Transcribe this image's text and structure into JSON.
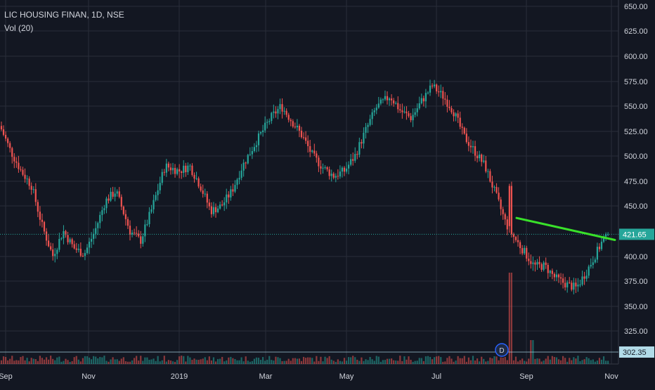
{
  "header": {
    "symbol_line": "LIC HOUSING FINAN, 1D, NSE",
    "volume_label": "Vol (20)"
  },
  "colors": {
    "background": "#131722",
    "grid": "#2a2e39",
    "up": "#26a69a",
    "down": "#ef5350",
    "trendline": "#39e12a",
    "price_line": "#26a69a",
    "axis_text": "#d1d4dc"
  },
  "chart_data": {
    "type": "candlestick",
    "title": "LIC HOUSING FINAN, 1D, NSE",
    "indicator": "Vol (20)",
    "y_ticks": [
      "650.00",
      "625.00",
      "600.00",
      "575.00",
      "550.00",
      "525.00",
      "500.00",
      "475.00",
      "450.00",
      "400.00",
      "375.00",
      "350.00",
      "325.00"
    ],
    "ylim": [
      300,
      660
    ],
    "x_ticks": [
      "Sep",
      "Nov",
      "2019",
      "Mar",
      "May",
      "Jul",
      "Sep",
      "Nov"
    ],
    "last_price": "421.65",
    "volume_marker": "302.35",
    "event_marker": "D",
    "grid": true,
    "anchors": [
      [
        "Sep",
        530
      ],
      [
        "Sep",
        505
      ],
      [
        "Sep",
        485
      ],
      [
        "Sep",
        470
      ],
      [
        "Oct",
        430
      ],
      [
        "Oct",
        400
      ],
      [
        "Oct",
        425
      ],
      [
        "Oct",
        408
      ],
      [
        "Nov",
        402
      ],
      [
        "Nov",
        425
      ],
      [
        "Nov",
        455
      ],
      [
        "Nov",
        465
      ],
      [
        "Dec",
        425
      ],
      [
        "Dec",
        415
      ],
      [
        "Dec",
        445
      ],
      [
        "Dec",
        490
      ],
      [
        "2019",
        485
      ],
      [
        "2019",
        490
      ],
      [
        "2019",
        470
      ],
      [
        "Feb",
        445
      ],
      [
        "Feb",
        450
      ],
      [
        "Feb",
        465
      ],
      [
        "Feb",
        490
      ],
      [
        "Mar",
        515
      ],
      [
        "Mar",
        538
      ],
      [
        "Mar",
        550
      ],
      [
        "Mar",
        535
      ],
      [
        "Apr",
        520
      ],
      [
        "Apr",
        500
      ],
      [
        "Apr",
        488
      ],
      [
        "Apr",
        480
      ],
      [
        "May",
        485
      ],
      [
        "May",
        500
      ],
      [
        "May",
        525
      ],
      [
        "May",
        548
      ],
      [
        "Jun",
        560
      ],
      [
        "Jun",
        545
      ],
      [
        "Jun",
        538
      ],
      [
        "Jun",
        555
      ],
      [
        "Jul",
        570
      ],
      [
        "Jul",
        560
      ],
      [
        "Jul",
        545
      ],
      [
        "Jul",
        520
      ],
      [
        "Aug",
        505
      ],
      [
        "Aug",
        490
      ],
      [
        "Aug",
        462
      ],
      [
        "Aug",
        432
      ],
      [
        "Aug",
        420
      ],
      [
        "Sep",
        405
      ],
      [
        "Sep",
        390
      ],
      [
        "Sep",
        390
      ],
      [
        "Sep",
        378
      ],
      [
        "Oct",
        372
      ],
      [
        "Oct",
        368
      ],
      [
        "Oct",
        385
      ],
      [
        "Nov",
        405
      ],
      [
        "Nov",
        421.65
      ]
    ],
    "trendline": {
      "from": [
        "Aug",
        438
      ],
      "to": [
        "Nov",
        416
      ]
    }
  }
}
